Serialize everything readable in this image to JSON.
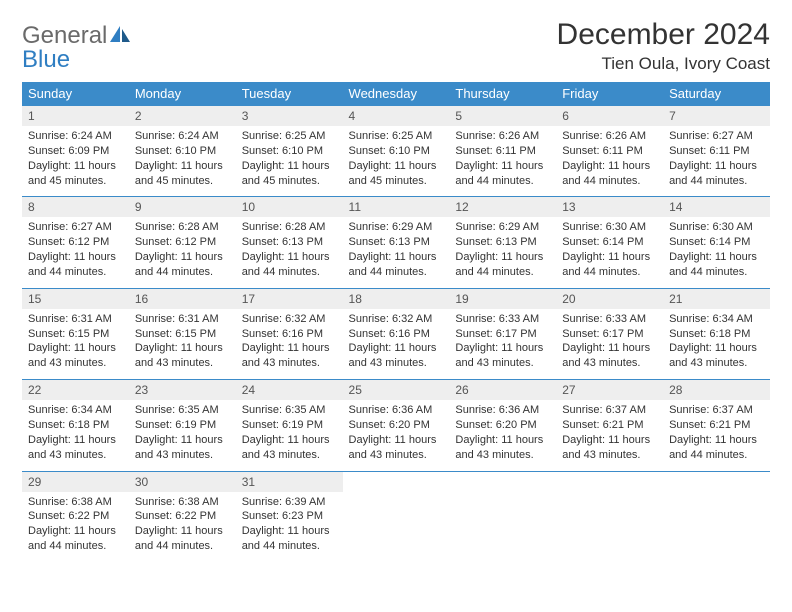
{
  "logo": {
    "general": "General",
    "blue": "Blue"
  },
  "title": "December 2024",
  "location": "Tien Oula, Ivory Coast",
  "colors": {
    "header_bg": "#3b8bc9",
    "header_text": "#ffffff",
    "daynum_bg": "#eeeeee",
    "border": "#3b8bc9",
    "logo_blue": "#2f7ec2",
    "logo_gray": "#6a6a6a"
  },
  "weekdays": [
    "Sunday",
    "Monday",
    "Tuesday",
    "Wednesday",
    "Thursday",
    "Friday",
    "Saturday"
  ],
  "weeks": [
    [
      {
        "n": "1",
        "sr": "Sunrise: 6:24 AM",
        "ss": "Sunset: 6:09 PM",
        "dl": "Daylight: 11 hours and 45 minutes."
      },
      {
        "n": "2",
        "sr": "Sunrise: 6:24 AM",
        "ss": "Sunset: 6:10 PM",
        "dl": "Daylight: 11 hours and 45 minutes."
      },
      {
        "n": "3",
        "sr": "Sunrise: 6:25 AM",
        "ss": "Sunset: 6:10 PM",
        "dl": "Daylight: 11 hours and 45 minutes."
      },
      {
        "n": "4",
        "sr": "Sunrise: 6:25 AM",
        "ss": "Sunset: 6:10 PM",
        "dl": "Daylight: 11 hours and 45 minutes."
      },
      {
        "n": "5",
        "sr": "Sunrise: 6:26 AM",
        "ss": "Sunset: 6:11 PM",
        "dl": "Daylight: 11 hours and 44 minutes."
      },
      {
        "n": "6",
        "sr": "Sunrise: 6:26 AM",
        "ss": "Sunset: 6:11 PM",
        "dl": "Daylight: 11 hours and 44 minutes."
      },
      {
        "n": "7",
        "sr": "Sunrise: 6:27 AM",
        "ss": "Sunset: 6:11 PM",
        "dl": "Daylight: 11 hours and 44 minutes."
      }
    ],
    [
      {
        "n": "8",
        "sr": "Sunrise: 6:27 AM",
        "ss": "Sunset: 6:12 PM",
        "dl": "Daylight: 11 hours and 44 minutes."
      },
      {
        "n": "9",
        "sr": "Sunrise: 6:28 AM",
        "ss": "Sunset: 6:12 PM",
        "dl": "Daylight: 11 hours and 44 minutes."
      },
      {
        "n": "10",
        "sr": "Sunrise: 6:28 AM",
        "ss": "Sunset: 6:13 PM",
        "dl": "Daylight: 11 hours and 44 minutes."
      },
      {
        "n": "11",
        "sr": "Sunrise: 6:29 AM",
        "ss": "Sunset: 6:13 PM",
        "dl": "Daylight: 11 hours and 44 minutes."
      },
      {
        "n": "12",
        "sr": "Sunrise: 6:29 AM",
        "ss": "Sunset: 6:13 PM",
        "dl": "Daylight: 11 hours and 44 minutes."
      },
      {
        "n": "13",
        "sr": "Sunrise: 6:30 AM",
        "ss": "Sunset: 6:14 PM",
        "dl": "Daylight: 11 hours and 44 minutes."
      },
      {
        "n": "14",
        "sr": "Sunrise: 6:30 AM",
        "ss": "Sunset: 6:14 PM",
        "dl": "Daylight: 11 hours and 44 minutes."
      }
    ],
    [
      {
        "n": "15",
        "sr": "Sunrise: 6:31 AM",
        "ss": "Sunset: 6:15 PM",
        "dl": "Daylight: 11 hours and 43 minutes."
      },
      {
        "n": "16",
        "sr": "Sunrise: 6:31 AM",
        "ss": "Sunset: 6:15 PM",
        "dl": "Daylight: 11 hours and 43 minutes."
      },
      {
        "n": "17",
        "sr": "Sunrise: 6:32 AM",
        "ss": "Sunset: 6:16 PM",
        "dl": "Daylight: 11 hours and 43 minutes."
      },
      {
        "n": "18",
        "sr": "Sunrise: 6:32 AM",
        "ss": "Sunset: 6:16 PM",
        "dl": "Daylight: 11 hours and 43 minutes."
      },
      {
        "n": "19",
        "sr": "Sunrise: 6:33 AM",
        "ss": "Sunset: 6:17 PM",
        "dl": "Daylight: 11 hours and 43 minutes."
      },
      {
        "n": "20",
        "sr": "Sunrise: 6:33 AM",
        "ss": "Sunset: 6:17 PM",
        "dl": "Daylight: 11 hours and 43 minutes."
      },
      {
        "n": "21",
        "sr": "Sunrise: 6:34 AM",
        "ss": "Sunset: 6:18 PM",
        "dl": "Daylight: 11 hours and 43 minutes."
      }
    ],
    [
      {
        "n": "22",
        "sr": "Sunrise: 6:34 AM",
        "ss": "Sunset: 6:18 PM",
        "dl": "Daylight: 11 hours and 43 minutes."
      },
      {
        "n": "23",
        "sr": "Sunrise: 6:35 AM",
        "ss": "Sunset: 6:19 PM",
        "dl": "Daylight: 11 hours and 43 minutes."
      },
      {
        "n": "24",
        "sr": "Sunrise: 6:35 AM",
        "ss": "Sunset: 6:19 PM",
        "dl": "Daylight: 11 hours and 43 minutes."
      },
      {
        "n": "25",
        "sr": "Sunrise: 6:36 AM",
        "ss": "Sunset: 6:20 PM",
        "dl": "Daylight: 11 hours and 43 minutes."
      },
      {
        "n": "26",
        "sr": "Sunrise: 6:36 AM",
        "ss": "Sunset: 6:20 PM",
        "dl": "Daylight: 11 hours and 43 minutes."
      },
      {
        "n": "27",
        "sr": "Sunrise: 6:37 AM",
        "ss": "Sunset: 6:21 PM",
        "dl": "Daylight: 11 hours and 43 minutes."
      },
      {
        "n": "28",
        "sr": "Sunrise: 6:37 AM",
        "ss": "Sunset: 6:21 PM",
        "dl": "Daylight: 11 hours and 44 minutes."
      }
    ],
    [
      {
        "n": "29",
        "sr": "Sunrise: 6:38 AM",
        "ss": "Sunset: 6:22 PM",
        "dl": "Daylight: 11 hours and 44 minutes."
      },
      {
        "n": "30",
        "sr": "Sunrise: 6:38 AM",
        "ss": "Sunset: 6:22 PM",
        "dl": "Daylight: 11 hours and 44 minutes."
      },
      {
        "n": "31",
        "sr": "Sunrise: 6:39 AM",
        "ss": "Sunset: 6:23 PM",
        "dl": "Daylight: 11 hours and 44 minutes."
      },
      null,
      null,
      null,
      null
    ]
  ]
}
